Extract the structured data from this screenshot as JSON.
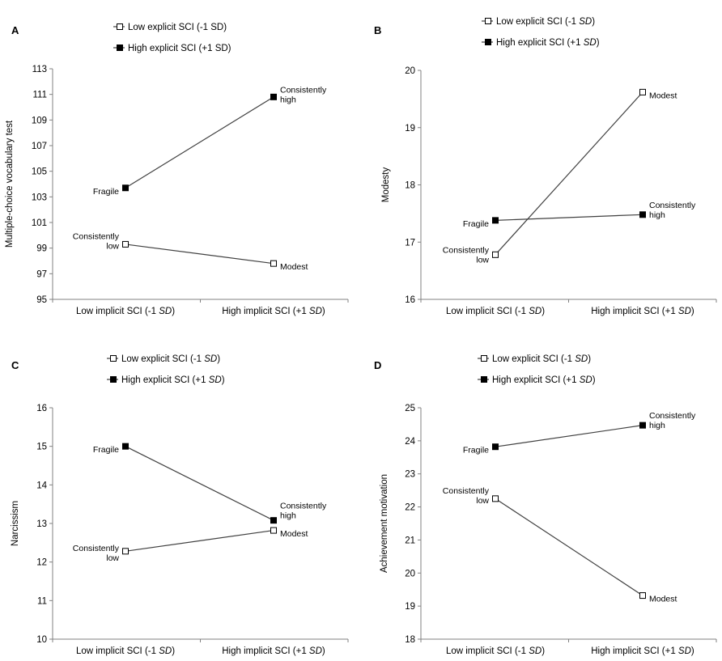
{
  "chart_data": [
    {
      "type": "line",
      "panel": "A",
      "ylabel": "Multiple-choice vocabulary test",
      "ylim": [
        95,
        113
      ],
      "yticks": [
        95,
        97,
        99,
        101,
        103,
        105,
        107,
        109,
        111,
        113
      ],
      "categories": [
        {
          "text": "Low implicit SCI (-1 ",
          "em": "SD",
          "close": ")"
        },
        {
          "text": "High implicit SCI (+1 ",
          "em": "SD",
          "close": ")"
        }
      ],
      "legend": [
        {
          "text": "Low explicit SCI (-1 SD)",
          "em": "",
          "close": ""
        },
        {
          "text": "High explicit SCI (+1 SD)",
          "em": "",
          "close": ""
        }
      ],
      "series": [
        {
          "name": "Low explicit SCI",
          "marker": "open",
          "values": [
            99.3,
            97.8
          ],
          "labels": [
            "Consistently\nlow",
            "Modest"
          ]
        },
        {
          "name": "High explicit SCI",
          "marker": "filled",
          "values": [
            103.7,
            110.8
          ],
          "labels": [
            "Fragile",
            "Consistently\nhigh"
          ]
        }
      ]
    },
    {
      "type": "line",
      "panel": "B",
      "ylabel": "Modesty",
      "ylim": [
        16,
        20
      ],
      "yticks": [
        16,
        17,
        18,
        19,
        20
      ],
      "categories": [
        {
          "text": "Low implicit SCI (-1 ",
          "em": "SD",
          "close": ")"
        },
        {
          "text": "High implicit SCI (+1 ",
          "em": "SD",
          "close": ")"
        }
      ],
      "legend": [
        {
          "text": "Low explicit SCI (-1 ",
          "em": "SD",
          "close": ")"
        },
        {
          "text": "High explicit SCI (+1 ",
          "em": "SD",
          "close": ")"
        }
      ],
      "series": [
        {
          "name": "Low explicit SCI",
          "marker": "open",
          "values": [
            16.78,
            19.62
          ],
          "labels": [
            "Consistently\nlow",
            "Modest"
          ]
        },
        {
          "name": "High explicit SCI",
          "marker": "filled",
          "values": [
            17.38,
            17.48
          ],
          "labels": [
            "Fragile",
            "Consistently\nhigh"
          ]
        }
      ]
    },
    {
      "type": "line",
      "panel": "C",
      "ylabel": "Narcissism",
      "ylim": [
        10,
        16
      ],
      "yticks": [
        10,
        11,
        12,
        13,
        14,
        15,
        16
      ],
      "categories": [
        {
          "text": "Low implicit SCI (-1 ",
          "em": "SD",
          "close": ")"
        },
        {
          "text": "High implicit SCI (+1 ",
          "em": "SD",
          "close": ")"
        }
      ],
      "legend": [
        {
          "text": "Low explicit SCI (-1 ",
          "em": "SD",
          "close": ")"
        },
        {
          "text": "High explicit SCI (+1 ",
          "em": "SD",
          "close": ")"
        }
      ],
      "series": [
        {
          "name": "Low explicit SCI",
          "marker": "open",
          "values": [
            12.28,
            12.82
          ],
          "labels": [
            "Consistently\nlow",
            "Modest"
          ]
        },
        {
          "name": "High explicit SCI",
          "marker": "filled",
          "values": [
            15.0,
            13.08
          ],
          "labels": [
            "Fragile",
            "Consistently\nhigh"
          ]
        }
      ]
    },
    {
      "type": "line",
      "panel": "D",
      "ylabel": "Achievement motivation",
      "ylim": [
        18,
        25
      ],
      "yticks": [
        18,
        19,
        20,
        21,
        22,
        23,
        24,
        25
      ],
      "categories": [
        {
          "text": "Low implicit SCI (-1 ",
          "em": "SD",
          "close": ")"
        },
        {
          "text": "High implicit SCI (+1 ",
          "em": "SD",
          "close": ")"
        }
      ],
      "legend": [
        {
          "text": "Low explicit SCI (-1 ",
          "em": "SD",
          "close": ")"
        },
        {
          "text": "High explicit SCI (+1 ",
          "em": "SD",
          "close": ")"
        }
      ],
      "series": [
        {
          "name": "Low explicit SCI",
          "marker": "open",
          "values": [
            22.25,
            19.32
          ],
          "labels": [
            "Consistently\nlow",
            "Modest"
          ]
        },
        {
          "name": "High explicit SCI",
          "marker": "filled",
          "values": [
            23.82,
            24.47
          ],
          "labels": [
            "Fragile",
            "Consistently\nhigh"
          ]
        }
      ]
    }
  ]
}
